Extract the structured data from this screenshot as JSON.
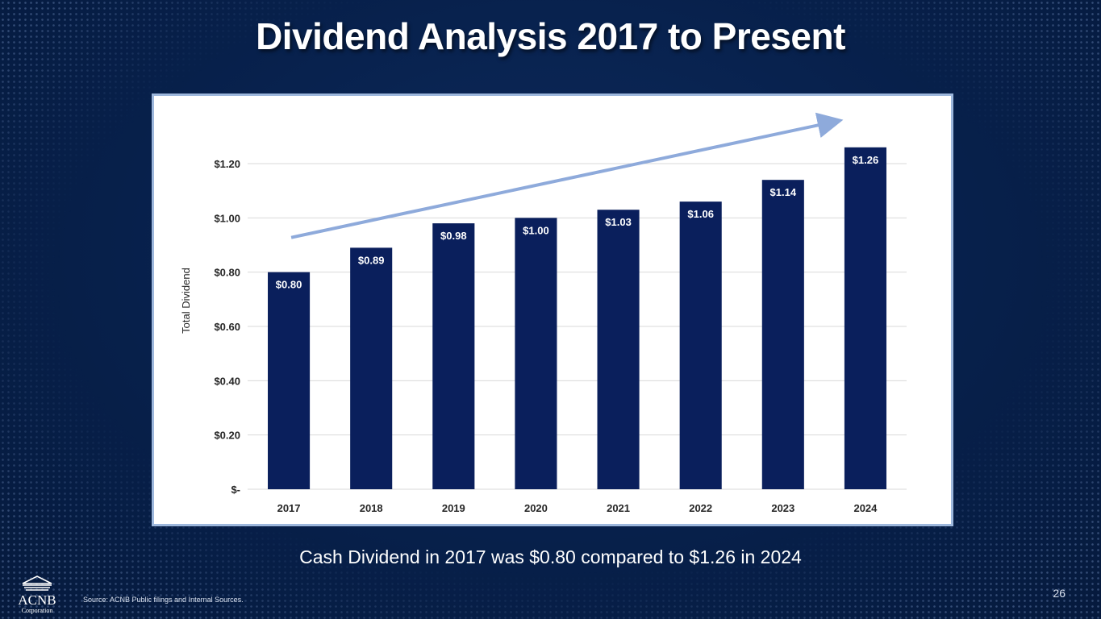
{
  "title": "Dividend Analysis 2017 to Present",
  "caption": "Cash Dividend in 2017 was $0.80 compared to $1.26 in 2024",
  "source": "Source: ACNB Public filings and Internal Sources.",
  "page_number": "26",
  "logo": {
    "name": "ACNB",
    "subtitle": "Corporation"
  },
  "colors": {
    "bar": "#0a1f5c",
    "trend_arrow": "#8eaadb",
    "grid": "#d9d9d9",
    "background": "#07204b"
  },
  "chart_data": {
    "type": "bar",
    "title": "",
    "xlabel": "",
    "ylabel": "Total Dividend",
    "categories": [
      "2017",
      "2018",
      "2019",
      "2020",
      "2021",
      "2022",
      "2023",
      "2024"
    ],
    "values": [
      0.8,
      0.89,
      0.98,
      1.0,
      1.03,
      1.06,
      1.14,
      1.26
    ],
    "data_labels": [
      "$0.80",
      "$0.89",
      "$0.98",
      "$1.00",
      "$1.03",
      "$1.06",
      "$1.14",
      "$1.26"
    ],
    "ylim": [
      0,
      1.2
    ],
    "yticks": [
      0,
      0.2,
      0.4,
      0.6,
      0.8,
      1.0,
      1.2
    ],
    "ytick_labels": [
      "$-",
      "$0.20",
      "$0.40",
      "$0.60",
      "$0.80",
      "$1.00",
      "$1.20"
    ],
    "grid": true,
    "annotations": [
      {
        "type": "trend-arrow",
        "direction": "up",
        "start_category": "2017",
        "end_category": "2023"
      }
    ]
  }
}
